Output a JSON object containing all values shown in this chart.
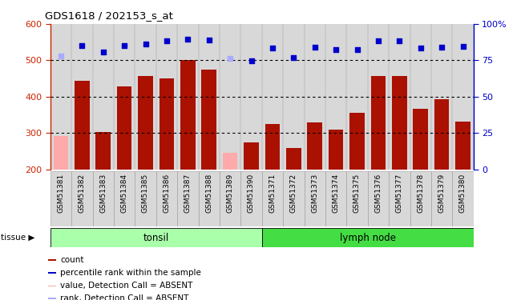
{
  "title": "GDS1618 / 202153_s_at",
  "samples": [
    "GSM51381",
    "GSM51382",
    "GSM51383",
    "GSM51384",
    "GSM51385",
    "GSM51386",
    "GSM51387",
    "GSM51388",
    "GSM51389",
    "GSM51390",
    "GSM51371",
    "GSM51372",
    "GSM51373",
    "GSM51374",
    "GSM51375",
    "GSM51376",
    "GSM51377",
    "GSM51378",
    "GSM51379",
    "GSM51380"
  ],
  "bar_values": [
    293,
    443,
    303,
    428,
    456,
    450,
    500,
    475,
    247,
    275,
    325,
    260,
    330,
    310,
    355,
    458,
    456,
    367,
    393,
    332
  ],
  "bar_absent": [
    true,
    false,
    false,
    false,
    false,
    false,
    false,
    false,
    true,
    false,
    false,
    false,
    false,
    false,
    false,
    false,
    false,
    false,
    false,
    false
  ],
  "rank_values": [
    513,
    540,
    523,
    540,
    545,
    553,
    558,
    557,
    506,
    498,
    535,
    508,
    537,
    530,
    530,
    554,
    553,
    533,
    537,
    538
  ],
  "rank_absent": [
    true,
    false,
    false,
    false,
    false,
    false,
    false,
    false,
    true,
    false,
    false,
    false,
    false,
    false,
    false,
    false,
    false,
    false,
    false,
    false
  ],
  "ymin": 200,
  "ymax": 600,
  "yticks": [
    200,
    300,
    400,
    500,
    600
  ],
  "y2ticks_vals": [
    0,
    25,
    50,
    75,
    100
  ],
  "y2ticks_labels": [
    "0",
    "25",
    "50",
    "75",
    "100%"
  ],
  "groups": [
    {
      "label": "tonsil",
      "start": 0,
      "end": 10,
      "color": "#aaffaa"
    },
    {
      "label": "lymph node",
      "start": 10,
      "end": 20,
      "color": "#44dd44"
    }
  ],
  "bar_color_present": "#aa1100",
  "bar_color_absent": "#ffaaaa",
  "rank_color_present": "#0000cc",
  "rank_color_absent": "#aaaaff",
  "bg_color": "#d8d8d8",
  "grid_color": "#000000",
  "legend": [
    {
      "color": "#aa1100",
      "label": "count"
    },
    {
      "color": "#0000cc",
      "label": "percentile rank within the sample"
    },
    {
      "color": "#ffaaaa",
      "label": "value, Detection Call = ABSENT"
    },
    {
      "color": "#aaaaff",
      "label": "rank, Detection Call = ABSENT"
    }
  ]
}
